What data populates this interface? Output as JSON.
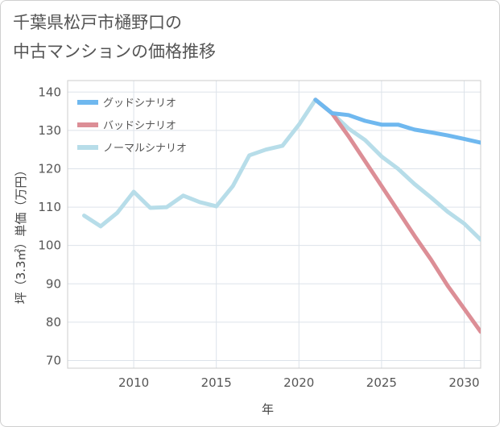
{
  "chart_data": {
    "type": "line",
    "title": "千葉県松戸市樋野口の\n中古マンションの価格推移",
    "xlabel": "年",
    "ylabel": "坪（3.3㎡）単価（万円）",
    "xlim": [
      2006,
      2031
    ],
    "ylim": [
      68,
      143
    ],
    "xticks": [
      2010,
      2015,
      2020,
      2025,
      2030
    ],
    "yticks": [
      70,
      80,
      90,
      100,
      110,
      120,
      130,
      140
    ],
    "grid": true,
    "legend_position": "top-left",
    "series": [
      {
        "name": "グッドシナリオ",
        "color": "#6fb8ef",
        "x": [
          2021,
          2022,
          2023,
          2024,
          2025,
          2026,
          2027,
          2028,
          2029,
          2030,
          2031
        ],
        "values": [
          138,
          134.5,
          134,
          132.5,
          131.5,
          131.5,
          130.2,
          129.5,
          128.7,
          127.8,
          126.8
        ]
      },
      {
        "name": "バッドシナリオ",
        "color": "#dc8e96",
        "x": [
          2021,
          2022,
          2023,
          2024,
          2025,
          2026,
          2027,
          2028,
          2029,
          2030,
          2031
        ],
        "values": [
          138,
          134.5,
          128.5,
          122,
          115.5,
          109,
          102.5,
          96.3,
          89.5,
          83.5,
          77.5
        ]
      },
      {
        "name": "ノーマルシナリオ",
        "color": "#b7dde9",
        "x": [
          2007,
          2008,
          2009,
          2010,
          2011,
          2012,
          2013,
          2014,
          2015,
          2016,
          2017,
          2018,
          2019,
          2020,
          2021,
          2022,
          2023,
          2024,
          2025,
          2026,
          2027,
          2028,
          2029,
          2030,
          2031
        ],
        "values": [
          107.8,
          105,
          108.5,
          114,
          109.8,
          110,
          113,
          111.3,
          110.2,
          115.5,
          123.5,
          125,
          126,
          131.5,
          138,
          134.5,
          130.5,
          127.5,
          123.2,
          120,
          116,
          112.5,
          108.8,
          105.7,
          101.5
        ]
      }
    ]
  }
}
